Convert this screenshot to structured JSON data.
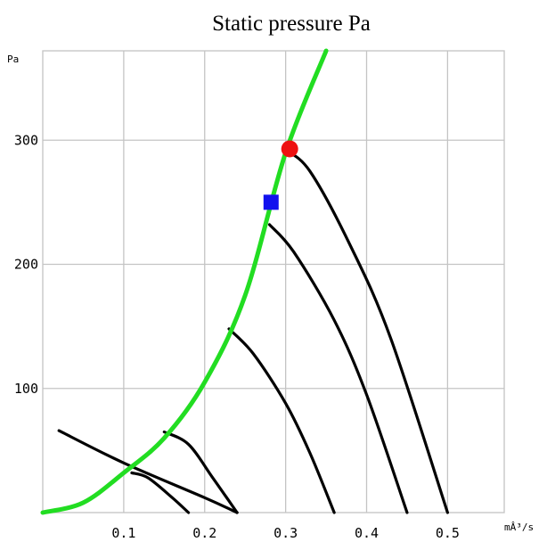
{
  "chart_data": {
    "type": "line",
    "title": "Static pressure Pa",
    "ylabel": "Pa",
    "xlabel": "mÂ³/s",
    "xlim": [
      0,
      0.57
    ],
    "ylim": [
      0,
      372
    ],
    "grid": true,
    "x_ticks": [
      {
        "value": 0.1,
        "label": "0.1"
      },
      {
        "value": 0.2,
        "label": "0.2"
      },
      {
        "value": 0.3,
        "label": "0.3"
      },
      {
        "value": 0.4,
        "label": "0.4"
      },
      {
        "value": 0.5,
        "label": "0.5"
      }
    ],
    "y_ticks": [
      {
        "value": 100,
        "label": "100"
      },
      {
        "value": 200,
        "label": "200"
      },
      {
        "value": 300,
        "label": "300"
      }
    ],
    "x_gridlines": [
      0.1,
      0.2,
      0.3,
      0.4,
      0.5
    ],
    "y_gridlines": [
      100,
      200,
      300
    ],
    "colors": {
      "system_curve": "#22dd22",
      "fan_curves": "#000000",
      "operating_point": "#ee1111",
      "duty_point": "#1111ee",
      "grid": "#c4c4c4"
    },
    "series": [
      {
        "kind": "system",
        "x": [
          0.0,
          0.05,
          0.1,
          0.15,
          0.2,
          0.25,
          0.3,
          0.35
        ],
        "y": [
          0,
          8,
          32,
          60,
          105,
          175,
          290,
          372
        ]
      },
      {
        "kind": "fan",
        "x": [
          0.02,
          0.1,
          0.2,
          0.24
        ],
        "y": [
          66,
          40,
          12,
          0
        ]
      },
      {
        "kind": "fan",
        "x": [
          0.11,
          0.13,
          0.16,
          0.18
        ],
        "y": [
          32,
          28,
          12,
          0
        ]
      },
      {
        "kind": "fan",
        "x": [
          0.15,
          0.18,
          0.21,
          0.24
        ],
        "y": [
          65,
          55,
          28,
          0
        ]
      },
      {
        "kind": "fan",
        "x": [
          0.23,
          0.26,
          0.3,
          0.33,
          0.36
        ],
        "y": [
          148,
          128,
          88,
          48,
          0
        ]
      },
      {
        "kind": "fan",
        "x": [
          0.28,
          0.31,
          0.36,
          0.4,
          0.45
        ],
        "y": [
          232,
          210,
          155,
          95,
          0
        ]
      },
      {
        "kind": "fan",
        "x": [
          0.3,
          0.33,
          0.38,
          0.43,
          0.5
        ],
        "y": [
          292,
          275,
          215,
          140,
          0
        ]
      }
    ],
    "markers": [
      {
        "kind": "operating-point",
        "shape": "circle",
        "x": 0.305,
        "y": 293
      },
      {
        "kind": "duty-point",
        "shape": "square",
        "x": 0.282,
        "y": 250
      }
    ]
  }
}
